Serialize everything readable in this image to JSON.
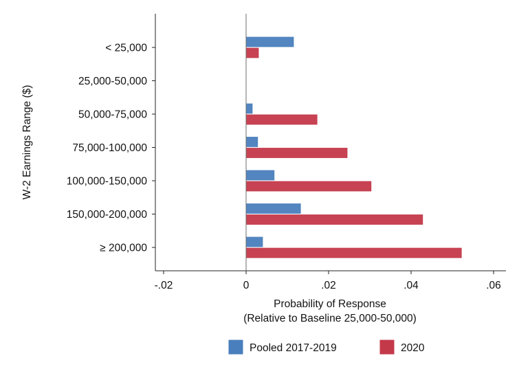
{
  "chart_data": {
    "type": "bar",
    "orientation": "horizontal",
    "categories": [
      "< 25,000",
      "25,000-50,000",
      "50,000-75,000",
      "75,000-100,000",
      "100,000-150,000",
      "150,000-200,000",
      "≥ 200,000"
    ],
    "series": [
      {
        "name": "Pooled 2017-2019",
        "color": "#4a7fbd",
        "values": [
          0.0115,
          null,
          0.0015,
          0.0028,
          0.0068,
          0.0132,
          0.004
        ]
      },
      {
        "name": "2020",
        "color": "#c4394a",
        "values": [
          0.003,
          null,
          0.0172,
          0.0245,
          0.0303,
          0.0428,
          0.0522
        ]
      }
    ],
    "xlabel_line1": "Probability of Response",
    "xlabel_line2": "(Relative to Baseline 25,000-50,000)",
    "ylabel": "W-2 Earnings Range ($)",
    "xlim": [
      -0.022,
      0.063
    ],
    "xticks": [
      -0.02,
      0,
      0.02,
      0.04,
      0.06
    ],
    "xtick_labels": [
      "-.02",
      "0",
      ".02",
      ".04",
      ".06"
    ],
    "reference_line_at": 0,
    "grid": false,
    "legend_position": "bottom"
  }
}
